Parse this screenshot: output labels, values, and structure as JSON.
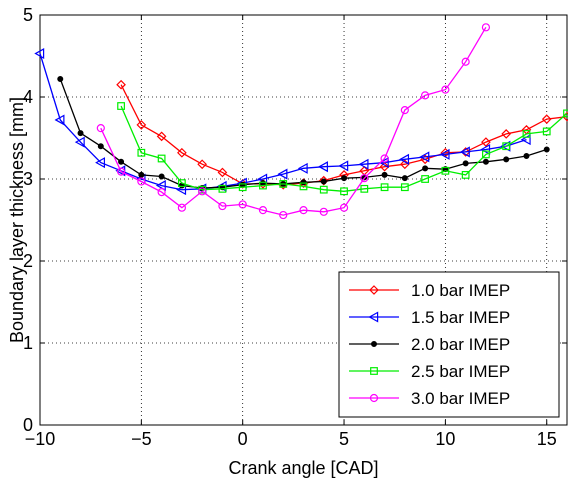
{
  "chart_data": {
    "type": "line",
    "title": "",
    "xlabel": "Crank angle [CAD]",
    "ylabel": "Boundary layer thickness [mm]",
    "xlim": [
      -10,
      16
    ],
    "ylim": [
      0,
      5
    ],
    "xticks": [
      -10,
      -5,
      0,
      5,
      10,
      15
    ],
    "yticks": [
      0,
      1,
      2,
      3,
      4,
      5
    ],
    "grid": "dotted",
    "legend_position": "bottom-right",
    "series": [
      {
        "name": "1.0 bar IMEP",
        "color": "#ff0000",
        "marker": "diamond",
        "x": [
          -6,
          -5,
          -4,
          -3,
          -2,
          -1,
          0,
          1,
          2,
          3,
          4,
          5,
          6,
          7,
          8,
          9,
          10,
          11,
          12,
          13,
          14,
          15,
          16
        ],
        "y": [
          4.15,
          3.66,
          3.52,
          3.32,
          3.18,
          3.08,
          2.94,
          2.94,
          2.93,
          2.95,
          2.98,
          3.05,
          3.1,
          3.15,
          3.18,
          3.24,
          3.32,
          3.33,
          3.45,
          3.55,
          3.6,
          3.73,
          3.76
        ]
      },
      {
        "name": "1.5 bar IMEP",
        "color": "#0000ff",
        "marker": "triangle-left",
        "x": [
          -10,
          -9,
          -8,
          -7,
          -6,
          -5,
          -4,
          -3,
          -2,
          -1,
          0,
          1,
          2,
          3,
          4,
          5,
          6,
          7,
          8,
          9,
          10,
          11,
          12,
          13,
          14
        ],
        "y": [
          4.53,
          3.72,
          3.45,
          3.2,
          3.1,
          3.0,
          2.92,
          2.87,
          2.88,
          2.91,
          2.95,
          3.0,
          3.06,
          3.13,
          3.15,
          3.16,
          3.18,
          3.2,
          3.24,
          3.27,
          3.3,
          3.33,
          3.36,
          3.4,
          3.48
        ]
      },
      {
        "name": "2.0 bar IMEP",
        "color": "#000000",
        "marker": "dot",
        "x": [
          -9,
          -8,
          -7,
          -6,
          -5,
          -4,
          -3,
          -2,
          -1,
          0,
          1,
          2,
          3,
          4,
          5,
          6,
          7,
          8,
          9,
          10,
          11,
          12,
          13,
          14,
          15
        ],
        "y": [
          4.22,
          3.56,
          3.4,
          3.21,
          3.05,
          3.03,
          2.92,
          2.89,
          2.9,
          2.93,
          2.95,
          2.94,
          2.96,
          2.97,
          3.01,
          3.02,
          3.05,
          3.01,
          3.13,
          3.12,
          3.19,
          3.21,
          3.24,
          3.28,
          3.36
        ]
      },
      {
        "name": "2.5 bar IMEP",
        "color": "#00ee00",
        "marker": "square",
        "x": [
          -6,
          -5,
          -4,
          -3,
          -2,
          -1,
          0,
          1,
          2,
          3,
          4,
          5,
          6,
          7,
          8,
          9,
          10,
          11,
          12,
          13,
          14,
          15,
          16
        ],
        "y": [
          3.89,
          3.32,
          3.25,
          2.95,
          2.87,
          2.88,
          2.9,
          2.92,
          2.94,
          2.91,
          2.87,
          2.85,
          2.88,
          2.9,
          2.9,
          3.0,
          3.1,
          3.05,
          3.3,
          3.4,
          3.55,
          3.58,
          3.8
        ]
      },
      {
        "name": "3.0 bar IMEP",
        "color": "#ff00ff",
        "marker": "circle",
        "x": [
          -7,
          -6,
          -5,
          -4,
          -3,
          -2,
          -1,
          0,
          1,
          2,
          3,
          4,
          5,
          6,
          7,
          8,
          9,
          10,
          11,
          12
        ],
        "y": [
          3.62,
          3.09,
          2.97,
          2.84,
          2.65,
          2.85,
          2.67,
          2.69,
          2.62,
          2.56,
          2.62,
          2.6,
          2.65,
          3.01,
          3.25,
          3.84,
          4.02,
          4.09,
          4.43,
          4.85
        ]
      }
    ]
  }
}
